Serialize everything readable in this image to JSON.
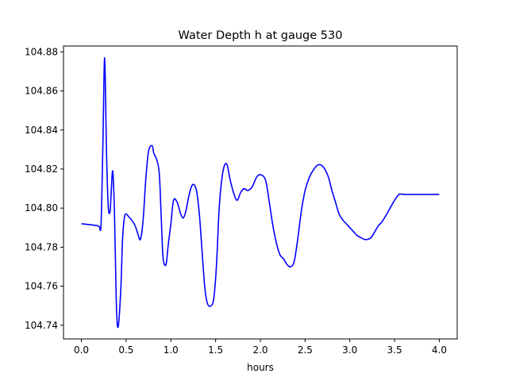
{
  "chart_data": {
    "type": "line",
    "title": "Water Depth h at gauge 530",
    "xlabel": "hours",
    "ylabel": "",
    "xlim": [
      -0.2,
      4.2
    ],
    "ylim": [
      104.733,
      104.883
    ],
    "xticks": [
      0.0,
      0.5,
      1.0,
      1.5,
      2.0,
      2.5,
      3.0,
      3.5,
      4.0
    ],
    "xtick_labels": [
      "0.0",
      "0.5",
      "1.0",
      "1.5",
      "2.0",
      "2.5",
      "3.0",
      "3.5",
      "4.0"
    ],
    "yticks": [
      104.74,
      104.76,
      104.78,
      104.8,
      104.82,
      104.84,
      104.86,
      104.88
    ],
    "ytick_labels": [
      "104.74",
      "104.76",
      "104.78",
      "104.80",
      "104.82",
      "104.84",
      "104.86",
      "104.88"
    ],
    "grid": false,
    "line_color": "#0000ff",
    "series": [
      {
        "x": [
          0.0,
          0.1,
          0.18,
          0.2,
          0.22,
          0.24,
          0.26,
          0.28,
          0.3,
          0.32,
          0.33,
          0.35,
          0.37,
          0.39,
          0.41,
          0.44,
          0.46,
          0.48,
          0.5,
          0.53,
          0.56,
          0.6,
          0.63,
          0.66,
          0.69,
          0.72,
          0.75,
          0.79,
          0.81,
          0.84,
          0.87,
          0.89,
          0.91,
          0.93,
          0.95,
          0.97,
          1.0,
          1.03,
          1.07,
          1.11,
          1.14,
          1.17,
          1.2,
          1.23,
          1.26,
          1.29,
          1.32,
          1.35,
          1.38,
          1.41,
          1.45,
          1.48,
          1.51,
          1.54,
          1.57,
          1.6,
          1.63,
          1.66,
          1.7,
          1.74,
          1.78,
          1.82,
          1.86,
          1.91,
          1.96,
          2.01,
          2.06,
          2.1,
          2.14,
          2.18,
          2.22,
          2.26,
          2.3,
          2.34,
          2.38,
          2.42,
          2.46,
          2.5,
          2.55,
          2.6,
          2.64,
          2.68,
          2.72,
          2.76,
          2.8,
          2.84,
          2.88,
          2.92,
          2.96,
          3.0,
          3.04,
          3.08,
          3.12,
          3.16,
          3.2,
          3.24,
          3.28,
          3.32,
          3.36,
          3.4,
          3.45,
          3.5,
          3.55,
          3.6,
          3.65,
          3.7,
          3.75,
          3.8,
          3.85,
          3.9,
          3.95,
          4.0
        ],
        "y": [
          104.792,
          104.7915,
          104.791,
          104.7905,
          104.792,
          104.832,
          104.877,
          104.83,
          104.801,
          104.798,
          104.805,
          104.819,
          104.797,
          104.752,
          104.739,
          104.758,
          104.784,
          104.795,
          104.797,
          104.7955,
          104.794,
          104.791,
          104.787,
          104.784,
          104.794,
          104.815,
          104.829,
          104.832,
          104.828,
          104.825,
          104.818,
          104.798,
          104.776,
          104.771,
          104.772,
          104.781,
          104.792,
          104.804,
          104.803,
          104.797,
          104.795,
          104.799,
          104.806,
          104.811,
          104.812,
          104.808,
          104.796,
          104.777,
          104.759,
          104.751,
          104.75,
          104.754,
          104.771,
          104.8,
          104.815,
          104.822,
          104.822,
          104.815,
          104.808,
          104.804,
          104.808,
          104.81,
          104.809,
          104.811,
          104.816,
          104.817,
          104.814,
          104.803,
          104.791,
          104.782,
          104.776,
          104.774,
          104.771,
          104.77,
          104.773,
          104.785,
          104.799,
          104.809,
          104.816,
          104.82,
          104.822,
          104.822,
          104.82,
          104.816,
          104.809,
          104.803,
          104.797,
          104.794,
          104.792,
          104.79,
          104.788,
          104.786,
          104.785,
          104.784,
          104.784,
          104.785,
          104.788,
          104.791,
          104.793,
          104.796,
          104.8,
          104.804,
          104.807,
          104.807,
          104.807,
          104.807,
          104.807,
          104.807,
          104.807,
          104.807,
          104.807,
          104.807
        ]
      }
    ]
  }
}
